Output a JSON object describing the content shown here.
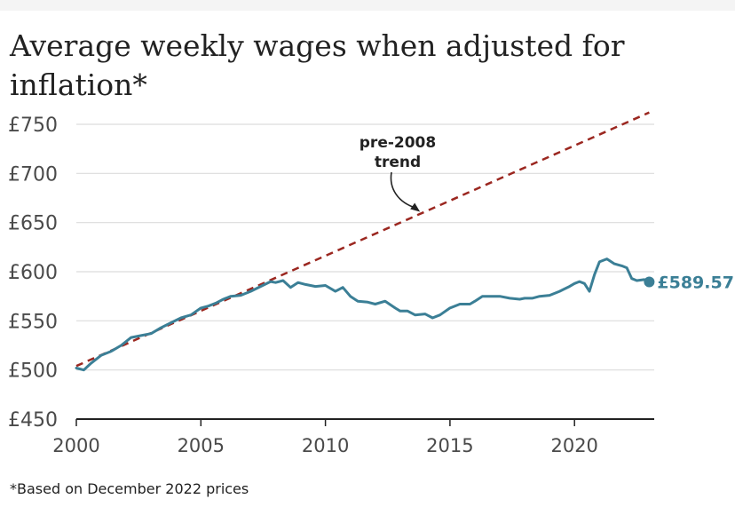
{
  "title": "Average weekly wages when adjusted for inflation*",
  "footnote": "*Based on December 2022 prices",
  "colors": {
    "series": "#3b7f96",
    "trend": "#9b2720",
    "grid": "#dcdcdc",
    "axis": "#222222"
  },
  "chart_data": {
    "type": "line",
    "title": "Average weekly wages when adjusted for inflation*",
    "xlabel": "",
    "ylabel": "",
    "ylim": [
      450,
      750
    ],
    "xlim": [
      2000,
      2023.2
    ],
    "xticks": [
      2000,
      2005,
      2010,
      2015,
      2020
    ],
    "xtick_labels": [
      "2000",
      "2005",
      "2010",
      "2015",
      "2020"
    ],
    "yticks": [
      450,
      500,
      550,
      600,
      650,
      700,
      750
    ],
    "ytick_labels": [
      "£450",
      "£500",
      "£550",
      "£600",
      "£650",
      "£700",
      "£750"
    ],
    "series": [
      {
        "name": "Average weekly wages",
        "x": [
          2000.0,
          2000.3,
          2000.6,
          2001.0,
          2001.4,
          2001.8,
          2002.2,
          2002.6,
          2003.0,
          2003.4,
          2003.8,
          2004.2,
          2004.6,
          2005.0,
          2005.3,
          2005.6,
          2005.9,
          2006.2,
          2006.6,
          2007.0,
          2007.4,
          2007.8,
          2008.0,
          2008.3,
          2008.6,
          2008.9,
          2009.2,
          2009.6,
          2010.0,
          2010.4,
          2010.7,
          2011.0,
          2011.3,
          2011.7,
          2012.0,
          2012.4,
          2012.8,
          2013.0,
          2013.3,
          2013.6,
          2014.0,
          2014.3,
          2014.6,
          2015.0,
          2015.4,
          2015.8,
          2016.0,
          2016.3,
          2016.6,
          2017.0,
          2017.4,
          2017.8,
          2018.0,
          2018.3,
          2018.6,
          2019.0,
          2019.4,
          2019.8,
          2020.0,
          2020.2,
          2020.4,
          2020.6,
          2020.8,
          2021.0,
          2021.3,
          2021.6,
          2021.9,
          2022.1,
          2022.3,
          2022.5,
          2022.8,
          2023.0
        ],
        "y": [
          502,
          500,
          507,
          515,
          519,
          525,
          533,
          535,
          537,
          543,
          548,
          553,
          556,
          563,
          565,
          568,
          572,
          575,
          576,
          580,
          585,
          590,
          589,
          591,
          584,
          589,
          587,
          585,
          586,
          580,
          584,
          575,
          570,
          569,
          567,
          570,
          563,
          560,
          560,
          556,
          557,
          553,
          556,
          563,
          567,
          567,
          570,
          575,
          575,
          575,
          573,
          572,
          573,
          573,
          575,
          576,
          580,
          585,
          588,
          590,
          588,
          580,
          597,
          610,
          613,
          608,
          606,
          604,
          593,
          591,
          592,
          589.57
        ]
      },
      {
        "name": "pre-2008 trend",
        "style": "dashed",
        "x": [
          2000.0,
          2023.0
        ],
        "y": [
          504,
          762
        ]
      }
    ],
    "annotations": [
      {
        "text_lines": [
          "pre-2008",
          "trend"
        ],
        "points_to": {
          "x": 2013.8,
          "y": 661
        }
      }
    ],
    "end_label": {
      "text": "£589.57",
      "x": 2023.0,
      "y": 589.57
    }
  }
}
